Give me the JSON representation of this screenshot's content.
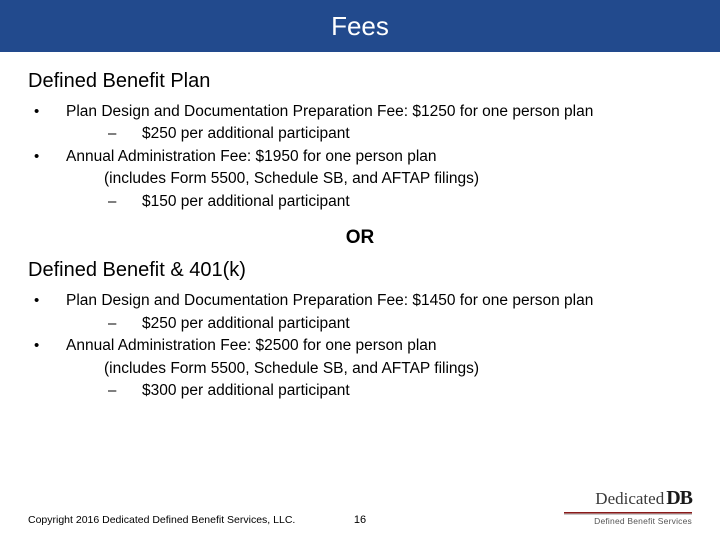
{
  "colors": {
    "band": "#224a8d",
    "title_text": "#ffffff",
    "text": "#000000"
  },
  "title": "Fees",
  "section_a": {
    "heading": "Defined Benefit Plan",
    "item1": "Plan Design and Documentation Preparation Fee: $1250 for one person plan",
    "item1_sub1": "$250 per additional participant",
    "item2": "Annual Administration Fee: $1950 for one person plan",
    "item2_includes": "(includes Form 5500, Schedule SB, and AFTAP filings)",
    "item2_sub1": "$150 per additional participant"
  },
  "or_label": "OR",
  "section_b": {
    "heading": "Defined Benefit & 401(k)",
    "item1": "Plan Design and Documentation Preparation Fee: $1450 for one person plan",
    "item1_sub1": "$250 per additional participant",
    "item2": "Annual Administration Fee: $2500 for one person plan",
    "item2_includes": "(includes Form 5500, Schedule SB, and AFTAP filings)",
    "item2_sub1": "$300 per additional participant"
  },
  "footer": {
    "copyright": "Copyright 2016 Dedicated Defined Benefit Services, LLC.",
    "page_number": "16",
    "logo_text_a": "Dedicated",
    "logo_text_b": "DB",
    "logo_sub": "Defined Benefit Services"
  }
}
